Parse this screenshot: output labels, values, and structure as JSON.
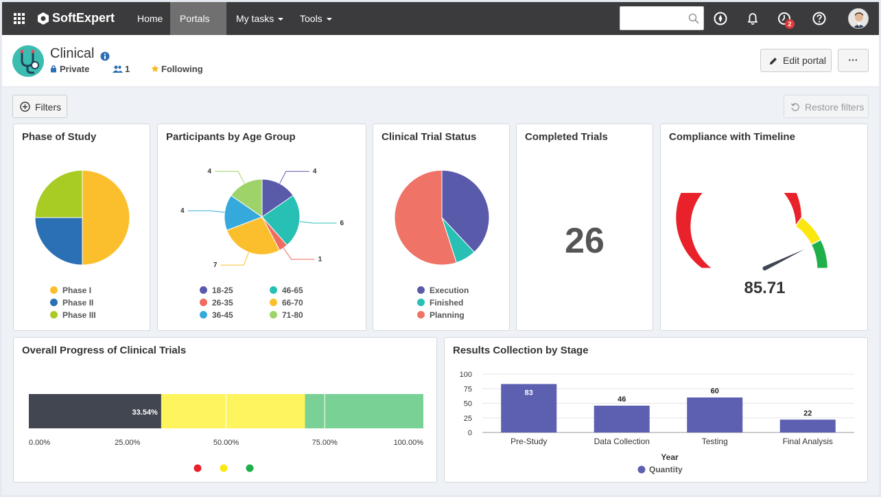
{
  "navbar": {
    "brand": "SoftExpert",
    "items": [
      {
        "label": "Home"
      },
      {
        "label": "Portals"
      },
      {
        "label": "My tasks"
      },
      {
        "label": "Tools"
      }
    ],
    "search_placeholder": "",
    "notification_badge": "2"
  },
  "portal": {
    "title": "Clinical",
    "privacy": "Private",
    "members": "1",
    "following": "Following",
    "edit_label": "Edit portal",
    "more_label": "···"
  },
  "toolbar": {
    "filters_label": "Filters",
    "restore_label": "Restore filters"
  },
  "cards": {
    "phase": {
      "title": "Phase of Study",
      "legend": [
        {
          "label": "Phase I",
          "color": "#fbbf2e"
        },
        {
          "label": "Phase II",
          "color": "#2b6fb5"
        },
        {
          "label": "Phase III",
          "color": "#a8cc24"
        }
      ]
    },
    "age": {
      "title": "Participants by Age Group",
      "legend": [
        {
          "label": "18-25",
          "color": "#5a5aaa"
        },
        {
          "label": "46-65",
          "color": "#28c0b4"
        },
        {
          "label": "26-35",
          "color": "#ef6c5e"
        },
        {
          "label": "66-70",
          "color": "#fbbf2e"
        },
        {
          "label": "36-45",
          "color": "#36a9dc"
        },
        {
          "label": "71-80",
          "color": "#9ed36a"
        }
      ]
    },
    "status": {
      "title": "Clinical Trial Status",
      "legend": [
        {
          "label": "Execution",
          "color": "#5a5aaa"
        },
        {
          "label": "Finished",
          "color": "#28c0b4"
        },
        {
          "label": "Planning",
          "color": "#ef7367"
        }
      ]
    },
    "completed": {
      "title": "Completed Trials",
      "value": "26"
    },
    "compliance": {
      "title": "Compliance with Timeline",
      "value": "85.71"
    },
    "progress": {
      "title": "Overall Progress of Clinical Trials",
      "bar_label": "33.54%",
      "ticks": [
        "0.00%",
        "25.00%",
        "50.00%",
        "75.00%",
        "100.00%"
      ]
    },
    "results": {
      "title": "Results Collection by Stage"
    }
  },
  "chart_data": [
    {
      "type": "pie",
      "title": "Phase of Study",
      "categories": [
        "Phase I",
        "Phase II",
        "Phase III"
      ],
      "values": [
        50,
        25,
        25
      ],
      "colors": [
        "#fbbf2e",
        "#2b6fb5",
        "#a8cc24"
      ]
    },
    {
      "type": "pie",
      "title": "Participants by Age Group",
      "categories": [
        "18-25",
        "46-65",
        "26-35",
        "66-70",
        "36-45",
        "71-80"
      ],
      "values": [
        4,
        6,
        1,
        7,
        4,
        4
      ],
      "colors": [
        "#5a5aaa",
        "#28c0b4",
        "#ef6c5e",
        "#fbbf2e",
        "#36a9dc",
        "#9ed36a"
      ]
    },
    {
      "type": "pie",
      "title": "Clinical Trial Status",
      "categories": [
        "Execution",
        "Finished",
        "Planning"
      ],
      "values": [
        38,
        7,
        55
      ],
      "colors": [
        "#5a5aaa",
        "#28c0b4",
        "#ef7367"
      ]
    },
    {
      "type": "gauge",
      "title": "Compliance with Timeline",
      "value": 85.71,
      "range": [
        0,
        100
      ],
      "bands": [
        {
          "from": 0,
          "to": 70,
          "color": "#e8212a"
        },
        {
          "from": 70,
          "to": 85,
          "color": "#fbe710"
        },
        {
          "from": 85,
          "to": 100,
          "color": "#20b04a"
        }
      ]
    },
    {
      "type": "bar",
      "title": "Overall Progress of Clinical Trials",
      "orientation": "horizontal-stacked",
      "value": 33.54,
      "xlim": [
        0,
        100
      ],
      "bands": [
        {
          "from": 0,
          "to": 70,
          "color": "#fdf45e"
        },
        {
          "from": 70,
          "to": 75,
          "color": "#7ad196"
        },
        {
          "from": 75,
          "to": 100,
          "color": "#7ad196"
        }
      ],
      "band_markers": [
        "#e8212a",
        "#fbe710",
        "#20b04a"
      ]
    },
    {
      "type": "bar",
      "title": "Results Collection by Stage",
      "categories": [
        "Pre-Study",
        "Data Collection",
        "Testing",
        "Final Analysis"
      ],
      "series": [
        {
          "name": "Quantity",
          "values": [
            83,
            46,
            60,
            22
          ],
          "color": "#5d5fb0"
        }
      ],
      "xlabel": "Year",
      "ylabel": "",
      "ylim": [
        0,
        100
      ],
      "yticks": [
        0,
        25,
        50,
        75,
        100
      ]
    }
  ]
}
